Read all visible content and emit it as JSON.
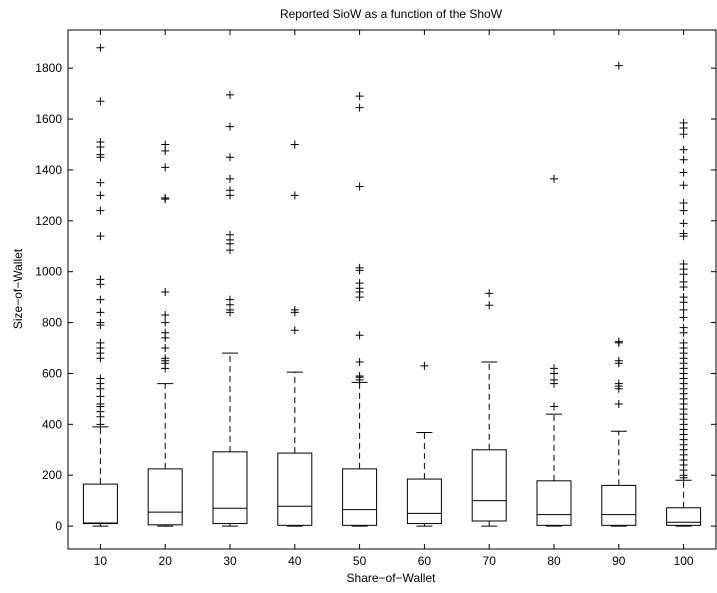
{
  "chart_data": {
    "type": "box",
    "title": "Reported SioW as a function of the ShoW",
    "xlabel": "Share−of−Wallet",
    "ylabel": "Size−of−Wallet",
    "ylim": [
      -90,
      1950
    ],
    "yticks": [
      0,
      200,
      400,
      600,
      800,
      1000,
      1200,
      1400,
      1600,
      1800
    ],
    "categories": [
      "10",
      "20",
      "30",
      "40",
      "50",
      "60",
      "70",
      "80",
      "90",
      "100"
    ],
    "boxes": [
      {
        "category": "10",
        "whisker_low": 0,
        "q1": 10,
        "median": 12,
        "q3": 165,
        "whisker_high": 390,
        "outliers": [
          1880,
          1670,
          1510,
          1490,
          1460,
          1450,
          1350,
          1300,
          1240,
          1140,
          970,
          950,
          890,
          840,
          800,
          790,
          720,
          700,
          680,
          660,
          580,
          560,
          540,
          510,
          480,
          470,
          450,
          430,
          400
        ]
      },
      {
        "category": "20",
        "whisker_low": 0,
        "q1": 5,
        "median": 55,
        "q3": 225,
        "whisker_high": 560,
        "outliers": [
          1500,
          1475,
          1410,
          1290,
          1285,
          920,
          830,
          800,
          760,
          740,
          700,
          660,
          650,
          640,
          620
        ]
      },
      {
        "category": "30",
        "whisker_low": 0,
        "q1": 10,
        "median": 70,
        "q3": 292,
        "whisker_high": 680,
        "outliers": [
          1695,
          1570,
          1450,
          1365,
          1320,
          1300,
          1145,
          1125,
          1110,
          1085,
          890,
          870,
          850,
          840
        ]
      },
      {
        "category": "40",
        "whisker_low": 0,
        "q1": 3,
        "median": 78,
        "q3": 287,
        "whisker_high": 605,
        "outliers": [
          1500,
          1300,
          850,
          840,
          770
        ]
      },
      {
        "category": "50",
        "whisker_low": 0,
        "q1": 3,
        "median": 65,
        "q3": 225,
        "whisker_high": 565,
        "outliers": [
          1690,
          1645,
          1335,
          1015,
          1005,
          955,
          935,
          920,
          900,
          750,
          645,
          590,
          585,
          575
        ]
      },
      {
        "category": "60",
        "whisker_low": 0,
        "q1": 10,
        "median": 50,
        "q3": 185,
        "whisker_high": 368,
        "outliers": [
          630
        ]
      },
      {
        "category": "70",
        "whisker_low": 0,
        "q1": 20,
        "median": 100,
        "q3": 300,
        "whisker_high": 645,
        "outliers": [
          915,
          868
        ]
      },
      {
        "category": "80",
        "whisker_low": 0,
        "q1": 3,
        "median": 45,
        "q3": 178,
        "whisker_high": 440,
        "outliers": [
          1365,
          620,
          600,
          575,
          560,
          470
        ]
      },
      {
        "category": "90",
        "whisker_low": 0,
        "q1": 3,
        "median": 45,
        "q3": 160,
        "whisker_high": 373,
        "outliers": [
          1810,
          725,
          720,
          650,
          640,
          560,
          550,
          540,
          480
        ]
      },
      {
        "category": "100",
        "whisker_low": 0,
        "q1": 3,
        "median": 15,
        "q3": 72,
        "whisker_high": 180,
        "outliers": [
          1585,
          1565,
          1540,
          1480,
          1440,
          1390,
          1340,
          1270,
          1240,
          1190,
          1150,
          1140,
          1030,
          1010,
          990,
          960,
          940,
          900,
          880,
          850,
          820,
          780,
          760,
          720,
          700,
          680,
          660,
          640,
          620,
          600,
          580,
          560,
          540,
          520,
          500,
          480,
          460,
          440,
          420,
          400,
          380,
          360,
          340,
          320,
          300,
          280,
          260,
          240,
          220,
          200,
          190
        ]
      }
    ],
    "grid": false,
    "legend": "none"
  }
}
